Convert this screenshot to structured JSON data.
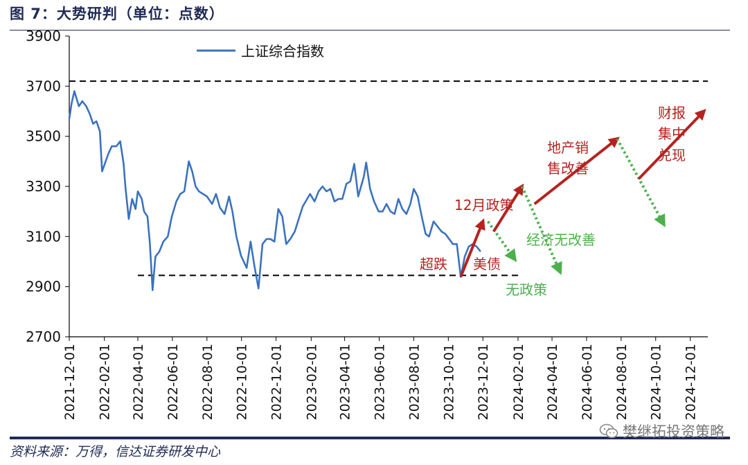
{
  "header": {
    "title": "图 7：大势研判（单位：点数）"
  },
  "footer": {
    "source": "资料来源：万得，信达证券研发中心",
    "watermark": "樊继拓投资策略"
  },
  "colors": {
    "index_line": "#3a72be",
    "up_arrow": "#b5221f",
    "down_arrow": "#4cb04c",
    "text_dark": "#111111",
    "frame": "#1f2a55"
  },
  "chart_data": {
    "type": "line",
    "title": "",
    "xlabel": "",
    "ylabel": "",
    "ylim": [
      2700,
      3900
    ],
    "yticks": [
      "2700",
      "2900",
      "3100",
      "3300",
      "3500",
      "3700",
      "3900"
    ],
    "xlim": [
      "2021-12-01",
      "2025-01-01"
    ],
    "xticks": [
      "2021-12-01",
      "2022-02-01",
      "2022-04-01",
      "2022-06-01",
      "2022-08-01",
      "2022-10-01",
      "2022-12-01",
      "2023-02-01",
      "2023-04-01",
      "2023-06-01",
      "2023-08-01",
      "2023-10-01",
      "2023-12-01",
      "2024-02-01",
      "2024-04-01",
      "2024-06-01",
      "2024-08-01",
      "2024-10-01",
      "2024-12-01"
    ],
    "legend": {
      "placement": "top-left",
      "entries": [
        "上证综合指数"
      ]
    },
    "grid": false,
    "series": [
      {
        "name": "上证综合指数",
        "points": [
          [
            "2021-12-01",
            3570
          ],
          [
            "2021-12-05",
            3630
          ],
          [
            "2021-12-10",
            3680
          ],
          [
            "2021-12-14",
            3650
          ],
          [
            "2021-12-18",
            3620
          ],
          [
            "2021-12-24",
            3640
          ],
          [
            "2021-12-31",
            3620
          ],
          [
            "2022-01-06",
            3590
          ],
          [
            "2022-01-12",
            3550
          ],
          [
            "2022-01-18",
            3560
          ],
          [
            "2022-01-24",
            3520
          ],
          [
            "2022-01-28",
            3360
          ],
          [
            "2022-02-08",
            3430
          ],
          [
            "2022-02-14",
            3460
          ],
          [
            "2022-02-22",
            3460
          ],
          [
            "2022-03-01",
            3480
          ],
          [
            "2022-03-07",
            3390
          ],
          [
            "2022-03-10",
            3300
          ],
          [
            "2022-03-16",
            3170
          ],
          [
            "2022-03-22",
            3250
          ],
          [
            "2022-03-28",
            3210
          ],
          [
            "2022-04-01",
            3280
          ],
          [
            "2022-04-08",
            3250
          ],
          [
            "2022-04-12",
            3200
          ],
          [
            "2022-04-18",
            3180
          ],
          [
            "2022-04-22",
            3080
          ],
          [
            "2022-04-26",
            2930
          ],
          [
            "2022-04-27",
            2886
          ],
          [
            "2022-05-02",
            3020
          ],
          [
            "2022-05-09",
            3040
          ],
          [
            "2022-05-16",
            3080
          ],
          [
            "2022-05-24",
            3100
          ],
          [
            "2022-05-31",
            3180
          ],
          [
            "2022-06-08",
            3240
          ],
          [
            "2022-06-15",
            3270
          ],
          [
            "2022-06-22",
            3280
          ],
          [
            "2022-06-30",
            3400
          ],
          [
            "2022-07-06",
            3360
          ],
          [
            "2022-07-12",
            3300
          ],
          [
            "2022-07-18",
            3280
          ],
          [
            "2022-07-25",
            3270
          ],
          [
            "2022-08-01",
            3260
          ],
          [
            "2022-08-10",
            3230
          ],
          [
            "2022-08-17",
            3270
          ],
          [
            "2022-08-24",
            3215
          ],
          [
            "2022-09-01",
            3190
          ],
          [
            "2022-09-09",
            3260
          ],
          [
            "2022-09-15",
            3200
          ],
          [
            "2022-09-22",
            3100
          ],
          [
            "2022-09-30",
            3024
          ],
          [
            "2022-10-10",
            2975
          ],
          [
            "2022-10-17",
            3080
          ],
          [
            "2022-10-24",
            2980
          ],
          [
            "2022-10-31",
            2893
          ],
          [
            "2022-11-07",
            3070
          ],
          [
            "2022-11-14",
            3090
          ],
          [
            "2022-11-21",
            3090
          ],
          [
            "2022-11-28",
            3080
          ],
          [
            "2022-12-05",
            3210
          ],
          [
            "2022-12-12",
            3180
          ],
          [
            "2022-12-19",
            3070
          ],
          [
            "2022-12-26",
            3090
          ],
          [
            "2023-01-03",
            3120
          ],
          [
            "2023-01-10",
            3170
          ],
          [
            "2023-01-17",
            3220
          ],
          [
            "2023-01-30",
            3270
          ],
          [
            "2023-02-07",
            3240
          ],
          [
            "2023-02-14",
            3280
          ],
          [
            "2023-02-21",
            3300
          ],
          [
            "2023-02-28",
            3280
          ],
          [
            "2023-03-07",
            3290
          ],
          [
            "2023-03-14",
            3240
          ],
          [
            "2023-03-21",
            3250
          ],
          [
            "2023-03-28",
            3250
          ],
          [
            "2023-04-04",
            3310
          ],
          [
            "2023-04-11",
            3320
          ],
          [
            "2023-04-18",
            3390
          ],
          [
            "2023-04-25",
            3260
          ],
          [
            "2023-05-05",
            3340
          ],
          [
            "2023-05-09",
            3395
          ],
          [
            "2023-05-16",
            3290
          ],
          [
            "2023-05-23",
            3240
          ],
          [
            "2023-05-31",
            3200
          ],
          [
            "2023-06-07",
            3200
          ],
          [
            "2023-06-14",
            3230
          ],
          [
            "2023-06-21",
            3200
          ],
          [
            "2023-06-28",
            3190
          ],
          [
            "2023-07-05",
            3250
          ],
          [
            "2023-07-12",
            3210
          ],
          [
            "2023-07-19",
            3190
          ],
          [
            "2023-07-26",
            3230
          ],
          [
            "2023-08-01",
            3290
          ],
          [
            "2023-08-08",
            3260
          ],
          [
            "2023-08-15",
            3180
          ],
          [
            "2023-08-22",
            3110
          ],
          [
            "2023-08-28",
            3100
          ],
          [
            "2023-09-05",
            3160
          ],
          [
            "2023-09-12",
            3140
          ],
          [
            "2023-09-19",
            3120
          ],
          [
            "2023-09-26",
            3110
          ],
          [
            "2023-10-09",
            3070
          ],
          [
            "2023-10-16",
            3070
          ],
          [
            "2023-10-23",
            2939
          ],
          [
            "2023-10-30",
            3020
          ],
          [
            "2023-11-06",
            3060
          ],
          [
            "2023-11-13",
            3070
          ],
          [
            "2023-11-20",
            3060
          ],
          [
            "2023-11-27",
            3040
          ]
        ]
      }
    ],
    "reference_lines": [
      {
        "value": 3720,
        "x_from": "2021-12-01",
        "x_to": "2025-01-01"
      },
      {
        "value": 2945,
        "x_from": "2022-04-01",
        "x_to": "2024-02-01"
      }
    ],
    "annotations": {
      "arrows": [
        {
          "from": [
            "2023-10-23",
            2940
          ],
          "to": [
            "2023-12-01",
            3160
          ],
          "direction": "up"
        },
        {
          "from": [
            "2023-12-10",
            3160
          ],
          "to": [
            "2024-01-26",
            3010
          ],
          "direction": "down"
        },
        {
          "from": [
            "2023-12-20",
            3120
          ],
          "to": [
            "2024-02-08",
            3300
          ],
          "direction": "up"
        },
        {
          "from": [
            "2024-02-08",
            3300
          ],
          "to": [
            "2024-04-15",
            2960
          ],
          "direction": "down"
        },
        {
          "from": [
            "2024-03-01",
            3230
          ],
          "to": [
            "2024-07-25",
            3490
          ],
          "direction": "up"
        },
        {
          "from": [
            "2024-07-25",
            3490
          ],
          "to": [
            "2024-10-15",
            3150
          ],
          "direction": "down"
        },
        {
          "from": [
            "2024-09-01",
            3330
          ],
          "to": [
            "2024-12-25",
            3600
          ],
          "direction": "up"
        }
      ],
      "labels": [
        {
          "text": "超跌",
          "color": "red"
        },
        {
          "text": "美债",
          "color": "red"
        },
        {
          "text": "12月政策",
          "color": "red"
        },
        {
          "text": "无政策",
          "color": "green"
        },
        {
          "text": "经济无改善",
          "color": "green"
        },
        {
          "text": "地产销",
          "color": "red"
        },
        {
          "text": "售改善",
          "color": "red"
        },
        {
          "text": "财报",
          "color": "red"
        },
        {
          "text": "集中",
          "color": "red"
        },
        {
          "text": "兑现",
          "color": "red"
        }
      ]
    }
  }
}
